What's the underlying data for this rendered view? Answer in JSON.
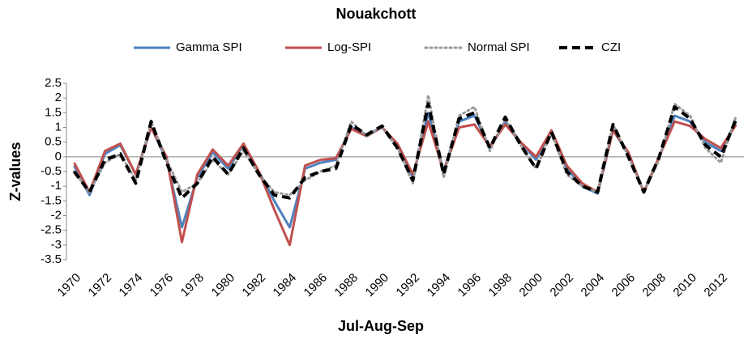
{
  "chart_data": {
    "type": "line",
    "title": "Nouakchott",
    "x_label": "Jul-Aug-Sep",
    "y_label": "Z-values",
    "legend": "top",
    "grid": false,
    "categories": [
      "1970",
      null,
      "1972",
      null,
      "1974",
      null,
      "1976",
      null,
      "1978",
      null,
      "1980",
      null,
      "1982",
      null,
      "1984",
      null,
      "1986",
      null,
      "1988",
      null,
      "1990",
      null,
      "1992",
      null,
      "1994",
      null,
      "1996",
      null,
      "1998",
      null,
      "2000",
      null,
      "2002",
      null,
      "2004",
      null,
      "2006",
      null,
      "2008",
      null,
      "2010",
      null,
      "2012",
      null
    ],
    "ylim": [
      -3.5,
      2.5
    ],
    "yticks": [
      2.5,
      2,
      1.5,
      1,
      0.5,
      0,
      -0.5,
      -1,
      -1.5,
      -2,
      -2.5,
      -3,
      -3.5
    ],
    "series": [
      {
        "name": "Gamma SPI",
        "color": "#4f81bd",
        "style": "solid",
        "values": [
          -0.3,
          -1.3,
          0.1,
          0.4,
          -0.6,
          1.0,
          -0.1,
          -2.4,
          -0.7,
          0.15,
          -0.4,
          0.4,
          -0.5,
          -1.5,
          -2.4,
          -0.4,
          -0.2,
          -0.1,
          1.0,
          0.75,
          1.0,
          0.4,
          -0.7,
          1.5,
          -0.5,
          1.2,
          1.4,
          0.3,
          1.2,
          0.5,
          -0.1,
          0.9,
          -0.4,
          -1.0,
          -1.25,
          0.9,
          0.1,
          -1.2,
          0.0,
          1.4,
          1.2,
          0.5,
          0.2,
          1.2
        ]
      },
      {
        "name": "Log-SPI",
        "color": "#c0504d",
        "style": "solid",
        "values": [
          -0.2,
          -1.2,
          0.2,
          0.45,
          -0.6,
          1.0,
          0.0,
          -2.9,
          -0.6,
          0.25,
          -0.3,
          0.45,
          -0.5,
          -1.8,
          -3.0,
          -0.3,
          -0.1,
          -0.05,
          0.95,
          0.7,
          1.0,
          0.45,
          -0.6,
          1.2,
          -0.5,
          1.0,
          1.1,
          0.35,
          1.1,
          0.5,
          0.0,
          0.9,
          -0.3,
          -0.9,
          -1.2,
          0.9,
          0.15,
          -1.2,
          0.0,
          1.2,
          1.05,
          0.6,
          0.3,
          1.1
        ]
      },
      {
        "name": "Normal SPI",
        "color": "#999999",
        "style": "dotted",
        "values": [
          -0.5,
          -1.2,
          -0.2,
          0.1,
          -0.8,
          1.2,
          -0.1,
          -1.2,
          -0.9,
          -0.1,
          -0.6,
          0.2,
          -0.6,
          -1.2,
          -1.3,
          -0.8,
          -0.5,
          -0.3,
          1.2,
          0.7,
          1.0,
          0.3,
          -0.9,
          2.1,
          -0.7,
          1.4,
          1.7,
          0.2,
          1.3,
          0.4,
          -0.4,
          0.8,
          -0.6,
          -1.0,
          -1.2,
          1.1,
          0.0,
          -1.2,
          -0.1,
          1.8,
          1.4,
          0.3,
          -0.2,
          1.4
        ]
      },
      {
        "name": "CZI",
        "color": "#000000",
        "style": "dashed",
        "values": [
          -0.5,
          -1.2,
          -0.1,
          0.1,
          -0.9,
          1.2,
          -0.2,
          -1.4,
          -0.9,
          0.0,
          -0.6,
          0.3,
          -0.6,
          -1.3,
          -1.4,
          -0.7,
          -0.5,
          -0.4,
          1.1,
          0.75,
          1.05,
          0.3,
          -0.8,
          1.8,
          -0.6,
          1.3,
          1.5,
          0.3,
          1.35,
          0.4,
          -0.4,
          0.85,
          -0.5,
          -1.0,
          -1.2,
          1.1,
          0.0,
          -1.2,
          0.0,
          1.7,
          1.3,
          0.4,
          0.0,
          1.3
        ]
      }
    ]
  }
}
